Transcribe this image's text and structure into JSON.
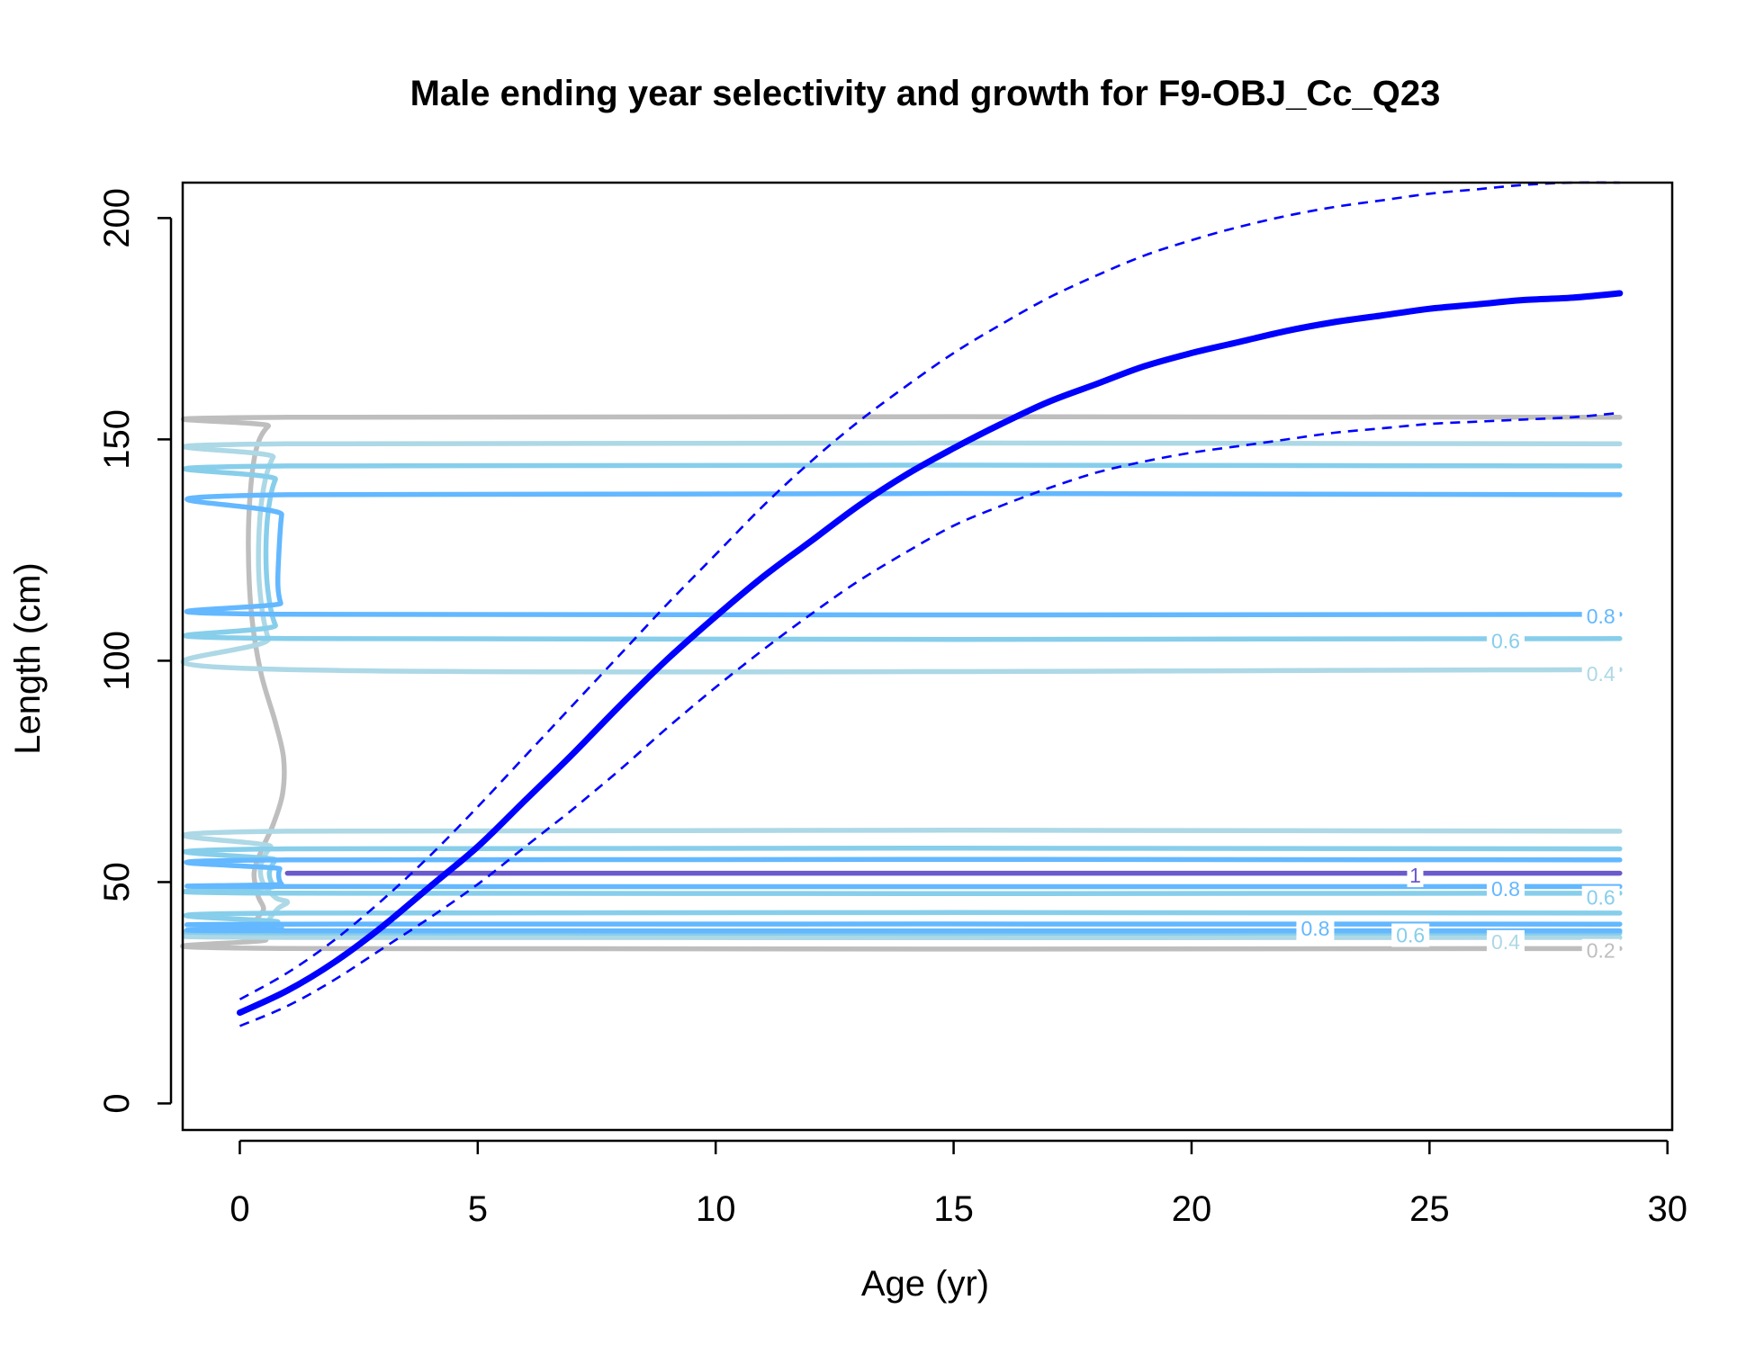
{
  "chart_data": {
    "type": "line",
    "title": "Male ending year selectivity and growth for F9-OBJ_Cc_Q23",
    "xlabel": "Age (yr)",
    "ylabel": "Length (cm)",
    "xlim": [
      -1.2,
      30.1
    ],
    "ylim": [
      -6,
      208
    ],
    "x_ticks": [
      0,
      5,
      10,
      15,
      20,
      25,
      30
    ],
    "y_ticks": [
      0,
      50,
      100,
      150,
      200
    ],
    "x_tick_labels": [
      "0",
      "5",
      "10",
      "15",
      "20",
      "25",
      "30"
    ],
    "y_tick_labels": [
      "0",
      "50",
      "100",
      "150",
      "200"
    ],
    "grid": false,
    "legend": "none",
    "series": [
      {
        "style": "solid",
        "color": "#0000ff",
        "x": [
          0,
          1,
          2,
          3,
          4,
          5,
          6,
          7,
          8,
          9,
          10,
          11,
          12,
          13,
          14,
          15,
          16,
          17,
          18,
          19,
          20,
          21,
          22,
          23,
          24,
          25,
          26,
          27,
          28,
          29
        ],
        "y": [
          20.5,
          25.5,
          32,
          40,
          49,
          58,
          68.5,
          79,
          90,
          100.5,
          110,
          119,
          127,
          135,
          142,
          148,
          153.5,
          158.5,
          162.5,
          166.5,
          169.5,
          172,
          174.5,
          176.5,
          178,
          179.5,
          180.5,
          181.5,
          182,
          183
        ]
      },
      {
        "style": "dashed",
        "color": "#0000ff",
        "x": [
          0,
          1,
          2,
          3,
          4,
          5,
          6,
          7,
          8,
          9,
          10,
          11,
          12,
          13,
          14,
          15,
          16,
          17,
          18,
          19,
          20,
          21,
          22,
          23,
          24,
          25,
          26,
          27,
          28,
          29
        ],
        "y": [
          23.5,
          29.5,
          37,
          46,
          56,
          67,
          78.5,
          90,
          101.5,
          113,
          124,
          135,
          145,
          154,
          162,
          169.5,
          176,
          182,
          187,
          191.5,
          195,
          198,
          200.5,
          202.5,
          204,
          205.5,
          206.5,
          207.5,
          208,
          208
        ]
      },
      {
        "style": "dashed",
        "color": "#0000ff",
        "x": [
          0,
          1,
          2,
          3,
          4,
          5,
          6,
          7,
          8,
          9,
          10,
          11,
          12,
          13,
          14,
          15,
          16,
          17,
          18,
          19,
          20,
          21,
          22,
          23,
          24,
          25,
          26,
          27,
          28,
          29
        ],
        "y": [
          17.5,
          22,
          28,
          35,
          42,
          49.5,
          58,
          66.5,
          75.5,
          85,
          94,
          102.5,
          110.5,
          118,
          124.5,
          130.5,
          135,
          139,
          142.5,
          145,
          147,
          148.5,
          150,
          151.5,
          152.5,
          153.5,
          154,
          154.5,
          155,
          156
        ]
      }
    ],
    "contours": [
      {
        "level": "0.2",
        "color": "#bebebe",
        "paths": [
          [
            [
              29,
              155
            ],
            [
              1,
              155
            ],
            [
              0.6,
              153
            ],
            [
              0.35,
              148
            ],
            [
              0.22,
              138
            ],
            [
              0.18,
              125
            ],
            [
              0.25,
              110
            ],
            [
              0.45,
              97
            ],
            [
              0.75,
              86
            ],
            [
              0.92,
              78
            ],
            [
              0.9,
              70
            ],
            [
              0.7,
              63
            ],
            [
              0.45,
              57
            ],
            [
              0.3,
              52
            ],
            [
              0.38,
              47
            ],
            [
              0.5,
              44
            ],
            [
              0.38,
              42
            ],
            [
              0.3,
              40
            ],
            [
              0.55,
              37
            ],
            [
              1,
              35
            ],
            [
              29,
              35
            ]
          ]
        ]
      },
      {
        "level": "0.4",
        "color": "#add8e6",
        "paths": [
          [
            [
              29,
              149
            ],
            [
              1,
              149
            ],
            [
              0.7,
              146
            ],
            [
              0.5,
              139
            ],
            [
              0.4,
              128
            ],
            [
              0.42,
              116
            ],
            [
              0.6,
              105
            ],
            [
              1,
              98
            ],
            [
              29,
              98
            ]
          ],
          [
            [
              29,
              61.5
            ],
            [
              1,
              61.5
            ],
            [
              0.65,
              58
            ],
            [
              0.45,
              54
            ],
            [
              0.48,
              50
            ],
            [
              0.75,
              46.5
            ],
            [
              1,
              45.5
            ],
            [
              0.8,
              44
            ],
            [
              0.6,
              41
            ],
            [
              0.7,
              38.5
            ],
            [
              1,
              37.5
            ],
            [
              29,
              37.5
            ]
          ]
        ]
      },
      {
        "level": "0.6",
        "color": "#87ceeb",
        "paths": [
          [
            [
              29,
              144
            ],
            [
              1,
              144
            ],
            [
              0.75,
              141
            ],
            [
              0.6,
              134
            ],
            [
              0.55,
              124
            ],
            [
              0.6,
              115
            ],
            [
              0.75,
              108
            ],
            [
              1,
              105
            ],
            [
              29,
              105
            ]
          ],
          [
            [
              29,
              57.5
            ],
            [
              1,
              57.5
            ],
            [
              0.75,
              55
            ],
            [
              0.62,
              52
            ],
            [
              0.72,
              49
            ],
            [
              1,
              47.5
            ],
            [
              29,
              47.5
            ]
          ],
          [
            [
              29,
              43
            ],
            [
              1,
              43
            ],
            [
              0.8,
              41
            ],
            [
              0.75,
              39.5
            ],
            [
              1,
              38.5
            ],
            [
              29,
              38.5
            ]
          ]
        ]
      },
      {
        "level": "0.8",
        "color": "#63b8ff",
        "paths": [
          [
            [
              29,
              137.5
            ],
            [
              1,
              137.5
            ],
            [
              0.88,
              133
            ],
            [
              0.82,
              124
            ],
            [
              0.8,
              117
            ],
            [
              0.86,
              113
            ],
            [
              1,
              110.5
            ],
            [
              29,
              110.5
            ]
          ],
          [
            [
              29,
              55
            ],
            [
              1,
              55
            ],
            [
              0.84,
              53
            ],
            [
              0.82,
              51
            ],
            [
              0.88,
              49.5
            ],
            [
              1,
              49
            ],
            [
              29,
              49
            ]
          ],
          [
            [
              29,
              40.5
            ],
            [
              1,
              40.5
            ],
            [
              0.88,
              40
            ],
            [
              0.88,
              39.5
            ],
            [
              1,
              39
            ],
            [
              29,
              39
            ]
          ]
        ]
      },
      {
        "level": "1",
        "color": "#6a5acd",
        "paths": [
          [
            [
              1,
              52
            ],
            [
              29,
              52
            ]
          ]
        ]
      }
    ],
    "contour_labels": [
      {
        "text": "0.8",
        "x": 28.6,
        "y": 110,
        "color": "#63b8ff"
      },
      {
        "text": "0.6",
        "x": 26.6,
        "y": 104.5,
        "color": "#87ceeb"
      },
      {
        "text": "0.4",
        "x": 28.6,
        "y": 97,
        "color": "#add8e6"
      },
      {
        "text": "1",
        "x": 24.7,
        "y": 51.5,
        "color": "#6a5acd"
      },
      {
        "text": "0.8",
        "x": 26.6,
        "y": 48.5,
        "color": "#63b8ff"
      },
      {
        "text": "0.6",
        "x": 28.6,
        "y": 46.5,
        "color": "#87ceeb"
      },
      {
        "text": "0.8",
        "x": 22.6,
        "y": 39.5,
        "color": "#63b8ff"
      },
      {
        "text": "0.6",
        "x": 24.6,
        "y": 38,
        "color": "#87ceeb"
      },
      {
        "text": "0.4",
        "x": 26.6,
        "y": 36.5,
        "color": "#add8e6"
      },
      {
        "text": "0.2",
        "x": 28.6,
        "y": 34.5,
        "color": "#bebebe"
      }
    ]
  }
}
